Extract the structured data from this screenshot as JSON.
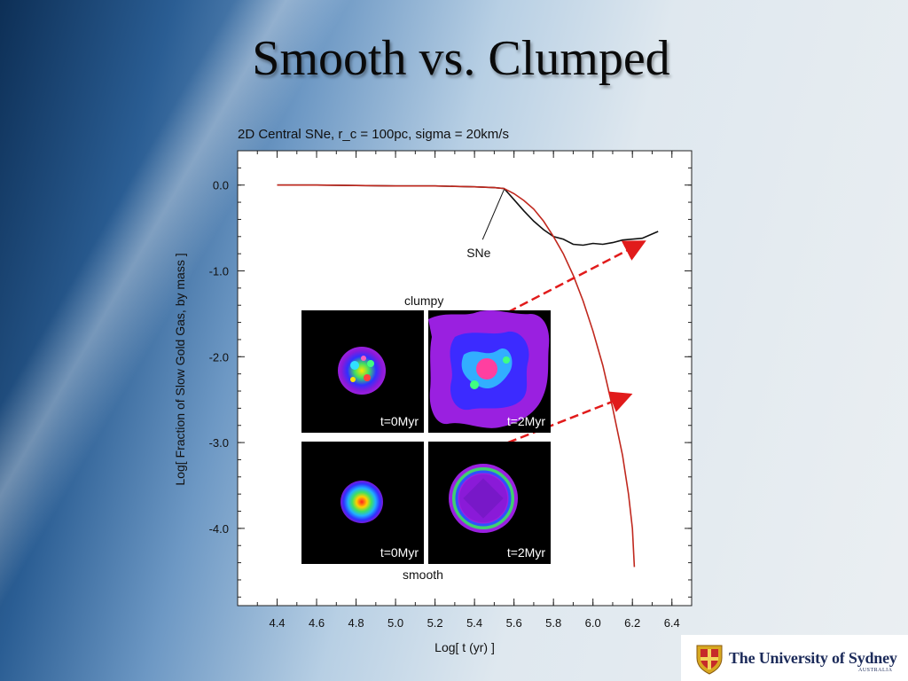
{
  "slide": {
    "title": "Smooth vs. Clumped"
  },
  "chart_data": {
    "type": "line",
    "title": "2D Central SNe, r_c = 100pc, sigma = 20km/s",
    "xlabel": "Log[ t (yr) ]",
    "ylabel": "Log[ Fraction of Slow Gold Gas, by mass ]",
    "xlim": [
      4.2,
      6.5
    ],
    "ylim": [
      -4.9,
      0.4
    ],
    "xticks": [
      "4.4",
      "4.6",
      "4.8",
      "5.0",
      "5.2",
      "5.4",
      "5.6",
      "5.8",
      "6.0",
      "6.2",
      "6.4"
    ],
    "yticks": [
      "0.0",
      "-1.0",
      "-2.0",
      "-3.0",
      "-4.0"
    ],
    "grid": false,
    "series": [
      {
        "color": "#111111",
        "x": [
          4.4,
          4.6,
          4.8,
          5.0,
          5.2,
          5.4,
          5.5,
          5.55,
          5.6,
          5.65,
          5.7,
          5.75,
          5.8,
          5.85,
          5.9,
          5.95,
          6.0,
          6.05,
          6.1,
          6.15,
          6.2,
          6.25,
          6.3,
          6.33
        ],
        "y": [
          0.0,
          0.0,
          -0.005,
          -0.01,
          -0.01,
          -0.02,
          -0.03,
          -0.04,
          -0.17,
          -0.3,
          -0.42,
          -0.52,
          -0.6,
          -0.63,
          -0.69,
          -0.7,
          -0.68,
          -0.69,
          -0.67,
          -0.64,
          -0.63,
          -0.62,
          -0.57,
          -0.54
        ]
      },
      {
        "color": "#c0281e",
        "x": [
          4.4,
          4.6,
          4.8,
          5.0,
          5.2,
          5.4,
          5.5,
          5.55,
          5.6,
          5.65,
          5.7,
          5.75,
          5.8,
          5.85,
          5.9,
          5.95,
          6.0,
          6.05,
          6.1,
          6.15,
          6.18,
          6.2,
          6.21
        ],
        "y": [
          0.0,
          0.0,
          -0.005,
          -0.01,
          -0.01,
          -0.02,
          -0.03,
          -0.04,
          -0.1,
          -0.18,
          -0.28,
          -0.42,
          -0.6,
          -0.8,
          -1.05,
          -1.35,
          -1.7,
          -2.1,
          -2.6,
          -3.15,
          -3.6,
          -4.0,
          -4.45
        ]
      }
    ],
    "annotations": [
      {
        "text": "SNe",
        "x": 5.36,
        "y": -0.78,
        "target_x": 5.55,
        "target_y": -0.05
      }
    ],
    "arrows": [
      {
        "from_x": 5.57,
        "from_y": -1.48,
        "to_x": 6.25,
        "to_y": -0.67,
        "color": "#e11b1b"
      },
      {
        "from_x": 5.57,
        "from_y": -3.0,
        "to_x": 6.18,
        "to_y": -2.45,
        "color": "#e11b1b"
      }
    ]
  },
  "panels": {
    "top_label": "clumpy",
    "bottom_label": "smooth",
    "thumbs": [
      {
        "label": "t=0Myr"
      },
      {
        "label": "t=2Myr"
      },
      {
        "label": "t=0Myr"
      },
      {
        "label": "t=2Myr"
      }
    ]
  },
  "logo": {
    "name": "The University of Sydney",
    "sub": "AUSTRALIA"
  }
}
